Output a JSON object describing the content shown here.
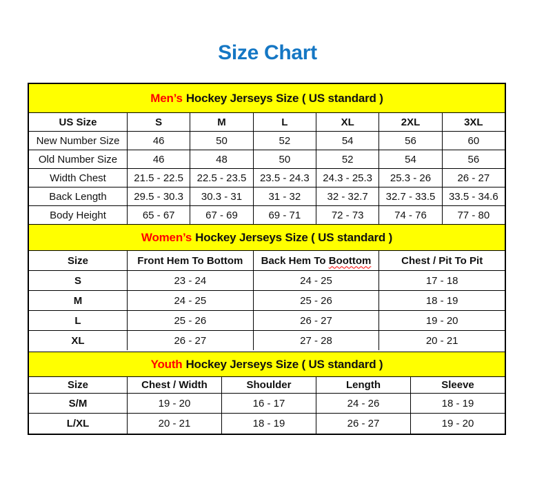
{
  "title": "Size Chart",
  "colors": {
    "title_blue": "#1577C4",
    "band_yellow": "#FFFF00",
    "accent_red": "#FF0000",
    "border": "#000000",
    "text": "#111111"
  },
  "tables": {
    "mens": {
      "band": {
        "highlight": "Men’s",
        "rest": "Hockey Jerseys Size ( US standard )"
      },
      "columns": [
        "US Size",
        "S",
        "M",
        "L",
        "XL",
        "2XL",
        "3XL"
      ],
      "rows": [
        {
          "label": "New Number Size",
          "values": [
            "46",
            "50",
            "52",
            "54",
            "56",
            "60"
          ]
        },
        {
          "label": "Old Number Size",
          "values": [
            "46",
            "48",
            "50",
            "52",
            "54",
            "56"
          ]
        },
        {
          "label": "Width Chest",
          "values": [
            "21.5 - 22.5",
            "22.5 - 23.5",
            "23.5 - 24.3",
            "24.3 - 25.3",
            "25.3 - 26",
            "26 - 27"
          ]
        },
        {
          "label": "Back Length",
          "values": [
            "29.5 - 30.3",
            "30.3 - 31",
            "31 - 32",
            "32 - 32.7",
            "32.7 - 33.5",
            "33.5 - 34.6"
          ]
        },
        {
          "label": "Body Height",
          "values": [
            "65 - 67",
            "67 - 69",
            "69 - 71",
            "72 - 73",
            "74 - 76",
            "77 - 80"
          ]
        }
      ]
    },
    "womens": {
      "band": {
        "highlight": "Women’s",
        "rest": "Hockey Jerseys Size ( US standard )"
      },
      "columns": [
        "Size",
        "Front Hem To Bottom",
        "Back Hem To",
        "Chest / Pit To Pit"
      ],
      "misspelled_word": "Boottom",
      "rows": [
        {
          "label": "S",
          "values": [
            "23 - 24",
            "24 - 25",
            "17 - 18"
          ]
        },
        {
          "label": "M",
          "values": [
            "24 - 25",
            "25 - 26",
            "18 - 19"
          ]
        },
        {
          "label": "L",
          "values": [
            "25 - 26",
            "26 - 27",
            "19 - 20"
          ]
        },
        {
          "label": "XL",
          "values": [
            "26 - 27",
            "27 - 28",
            "20 - 21"
          ]
        }
      ]
    },
    "youth": {
      "band": {
        "highlight": "Youth",
        "rest": "Hockey Jerseys Size ( US standard )"
      },
      "columns": [
        "Size",
        "Chest / Width",
        "Shoulder",
        "Length",
        "Sleeve"
      ],
      "rows": [
        {
          "label": "S/M",
          "values": [
            "19 - 20",
            "16 - 17",
            "24 - 26",
            "18 - 19"
          ]
        },
        {
          "label": "L/XL",
          "values": [
            "20 - 21",
            "18 - 19",
            "26 - 27",
            "19 - 20"
          ]
        }
      ]
    }
  }
}
